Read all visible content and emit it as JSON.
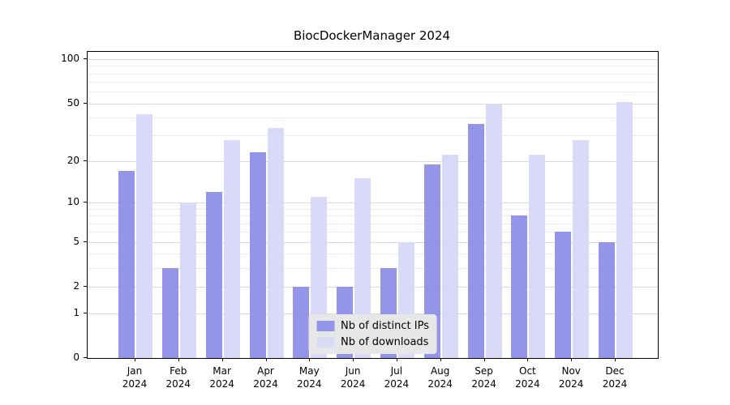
{
  "chart_data": {
    "type": "bar",
    "title": "BiocDockerManager 2024",
    "categories": [
      "Jan",
      "Feb",
      "Mar",
      "Apr",
      "May",
      "Jun",
      "Jul",
      "Aug",
      "Sep",
      "Oct",
      "Nov",
      "Dec"
    ],
    "year": "2024",
    "series": [
      {
        "name": "Nb of distinct IPs",
        "color": "#9494e8",
        "values": [
          17,
          3,
          12,
          23,
          2,
          2,
          3,
          19,
          36,
          8,
          6,
          5
        ]
      },
      {
        "name": "Nb of downloads",
        "color": "#dadaf8",
        "values": [
          42,
          10,
          28,
          34,
          11,
          15,
          5,
          22,
          49,
          22,
          28,
          51
        ]
      }
    ],
    "y_ticks": [
      0,
      1,
      2,
      5,
      10,
      20,
      50,
      100
    ],
    "minor_ticks": [
      3,
      4,
      6,
      7,
      8,
      9,
      30,
      40,
      60,
      70,
      80,
      90
    ],
    "ylim": [
      0,
      112
    ],
    "scale": "log1p",
    "grid": true,
    "legend_position": "lower center"
  }
}
